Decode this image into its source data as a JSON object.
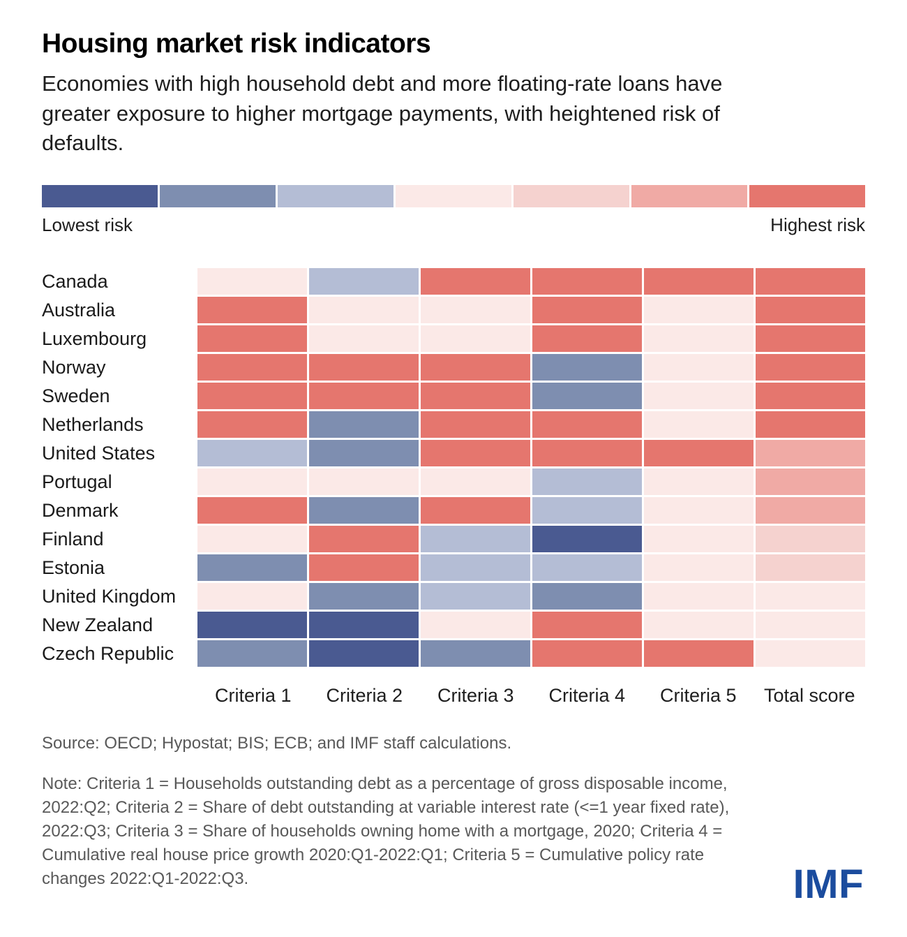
{
  "header": {
    "title": "Housing market risk indicators",
    "subtitle": "Economies with high household debt and more floating-rate loans have greater exposure to higher mortgage payments, with heightened risk of defaults."
  },
  "legend": {
    "low_label": "Lowest risk",
    "high_label": "Highest risk"
  },
  "chart_data": {
    "type": "heatmap",
    "title": "Housing market risk indicators",
    "columns": [
      "Criteria 1",
      "Criteria 2",
      "Criteria 3",
      "Criteria 4",
      "Criteria 5",
      "Total score"
    ],
    "risk_scale_note": "values are color levels 1-7; 1 = lowest risk (dark blue), 7 = highest risk (red)",
    "palette": [
      "#4A5A91",
      "#7E8EB0",
      "#B4BDD5",
      "#FBE9E7",
      "#F5D2CF",
      "#F0AAA5",
      "#E5766E"
    ],
    "legend_low": "Lowest risk",
    "legend_high": "Highest risk",
    "rows": [
      {
        "country": "Canada",
        "values": [
          4,
          3,
          7,
          7,
          7,
          7
        ]
      },
      {
        "country": "Australia",
        "values": [
          7,
          4,
          4,
          7,
          4,
          7
        ]
      },
      {
        "country": "Luxembourg",
        "values": [
          7,
          4,
          4,
          7,
          4,
          7
        ]
      },
      {
        "country": "Norway",
        "values": [
          7,
          7,
          7,
          2,
          4,
          7
        ]
      },
      {
        "country": "Sweden",
        "values": [
          7,
          7,
          7,
          2,
          4,
          7
        ]
      },
      {
        "country": "Netherlands",
        "values": [
          7,
          2,
          7,
          7,
          4,
          7
        ]
      },
      {
        "country": "United States",
        "values": [
          3,
          2,
          7,
          7,
          7,
          6
        ]
      },
      {
        "country": "Portugal",
        "values": [
          4,
          4,
          4,
          3,
          4,
          6
        ]
      },
      {
        "country": "Denmark",
        "values": [
          7,
          2,
          7,
          3,
          4,
          6
        ]
      },
      {
        "country": "Finland",
        "values": [
          4,
          7,
          3,
          1,
          4,
          5
        ]
      },
      {
        "country": "Estonia",
        "values": [
          2,
          7,
          3,
          3,
          4,
          5
        ]
      },
      {
        "country": "United Kingdom",
        "values": [
          4,
          2,
          3,
          2,
          4,
          4
        ]
      },
      {
        "country": "New Zealand",
        "values": [
          1,
          1,
          4,
          7,
          4,
          4
        ]
      },
      {
        "country": "Czech Republic",
        "values": [
          2,
          1,
          2,
          7,
          7,
          4
        ]
      }
    ]
  },
  "footer": {
    "source": "Source: OECD; Hypostat; BIS; ECB; and IMF staff calculations.",
    "note": "Note: Criteria 1 = Households outstanding debt as a percentage of gross disposable income, 2022:Q2; Criteria 2 = Share of debt outstanding at variable interest rate (<=1 year fixed rate), 2022:Q3; Criteria 3 = Share of households owning home with a mortgage, 2020; Criteria 4 = Cumulative real house price growth 2020:Q1-2022:Q1; Criteria 5 = Cumulative policy rate changes 2022:Q1-2022:Q3.",
    "logo": "IMF",
    "logo_color": "#1B4C9E"
  }
}
